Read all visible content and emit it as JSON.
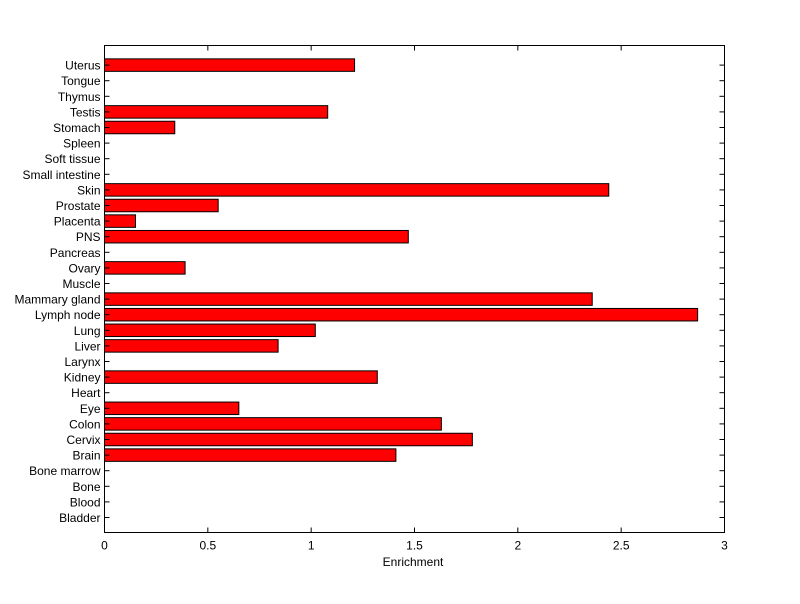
{
  "chart_data": {
    "type": "bar",
    "orientation": "horizontal",
    "xlabel": "Enrichment",
    "ylabel": "",
    "xlim": [
      0,
      3
    ],
    "xticks": [
      0,
      0.5,
      1,
      1.5,
      2,
      2.5,
      3
    ],
    "xtick_labels": [
      "0",
      "0.5",
      "1",
      "1.5",
      "2",
      "2.5",
      "3"
    ],
    "categories": [
      "Bladder",
      "Blood",
      "Bone",
      "Bone marrow",
      "Brain",
      "Cervix",
      "Colon",
      "Eye",
      "Heart",
      "Kidney",
      "Larynx",
      "Liver",
      "Lung",
      "Lymph node",
      "Mammary gland",
      "Muscle",
      "Ovary",
      "Pancreas",
      "PNS",
      "Placenta",
      "Prostate",
      "Skin",
      "Small intestine",
      "Soft tissue",
      "Spleen",
      "Stomach",
      "Testis",
      "Thymus",
      "Tongue",
      "Uterus"
    ],
    "values": [
      0,
      0,
      0,
      0,
      1.41,
      1.78,
      1.63,
      0.65,
      0,
      1.32,
      0,
      0.84,
      1.02,
      2.87,
      2.36,
      0,
      0.39,
      0,
      1.47,
      0.15,
      0.55,
      2.44,
      0,
      0,
      0,
      0.34,
      1.08,
      0,
      0,
      1.21
    ],
    "bar_color": "#ff0000",
    "grid": false,
    "legend": "none"
  }
}
